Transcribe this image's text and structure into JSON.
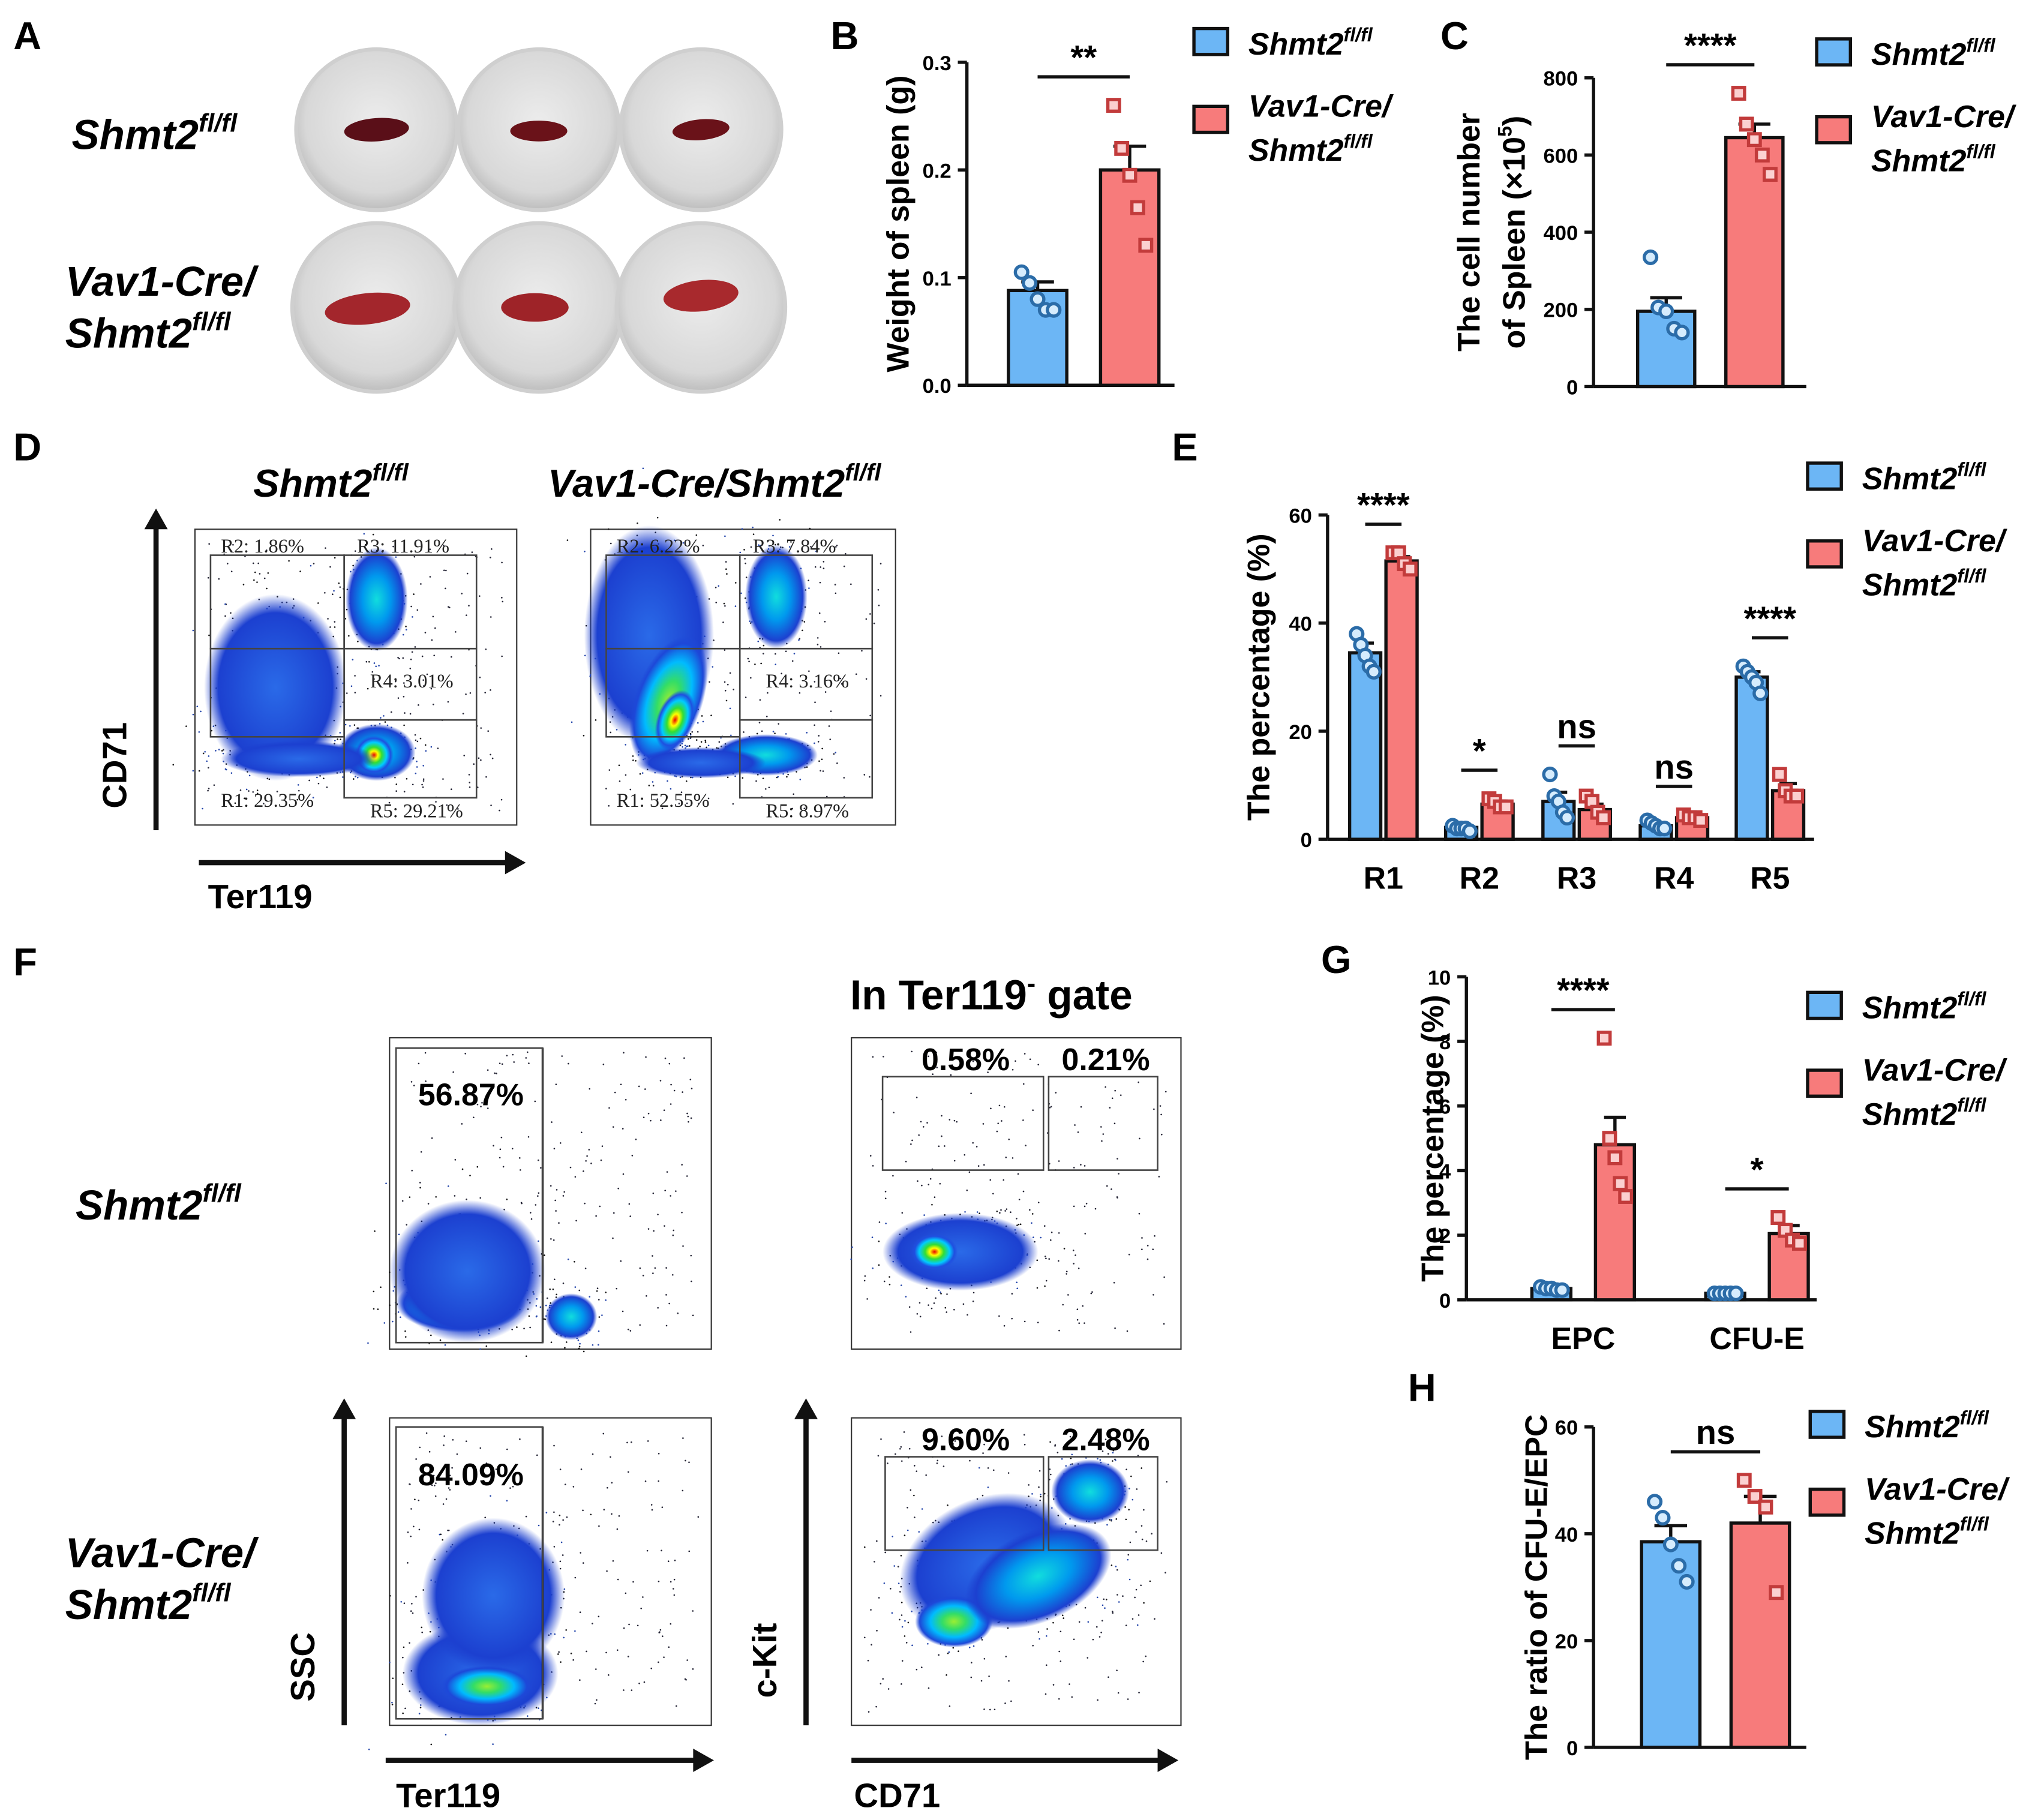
{
  "photo": {
    "label": "A",
    "rows": [
      {
        "text": "Shmt2",
        "sup": "fl/fl"
      },
      {
        "prefix": "Vav1-Cre/",
        "text": "Shmt2",
        "sup": "fl/fl"
      }
    ]
  },
  "flow_D": {
    "label": "D",
    "titles": [
      {
        "text": "Shmt2",
        "sup": "fl/fl"
      },
      {
        "text": "Vav1-Cre/Shmt2",
        "sup": "fl/fl"
      }
    ],
    "xlabel": "Ter119",
    "ylabel": "CD71",
    "gates": [
      [
        "R2: 1.86%",
        "R3: 11.91%",
        "R4: 3.01%",
        "R1: 29.35%",
        "R5: 29.21%"
      ],
      [
        "R2: 6.22%",
        "R3: 7.84%",
        "R4: 3.16%",
        "R1: 52.55%",
        "R5: 8.97%"
      ]
    ]
  },
  "flow_F": {
    "label": "F",
    "title": {
      "text": "In Ter119",
      "sup": "-",
      "after": " gate"
    },
    "rows": [
      {
        "text": "Shmt2",
        "sup": "fl/fl"
      },
      {
        "prefix": "Vav1-Cre/",
        "text": "Shmt2",
        "sup": "fl/fl"
      }
    ],
    "gates": [
      [
        "56.87%"
      ],
      [
        "0.58%",
        "0.21%"
      ],
      [
        "84.09%"
      ],
      [
        "9.60%",
        "2.48%"
      ]
    ],
    "xlabels": [
      "Ter119",
      "CD71"
    ],
    "ylabels": [
      "SSC",
      "c-Kit"
    ]
  },
  "chart_data": [
    {
      "type": "bar",
      "label": "B",
      "ylabel": "Weight of spleen (g)",
      "ylim": [
        0,
        0.3
      ],
      "yticks": [
        {
          "value": 0,
          "label": "0.0"
        },
        0.1,
        0.2,
        0.3
      ],
      "significance": [
        "**"
      ],
      "series": [
        {
          "name": {
            "text": "Shmt2",
            "sup": "fl/fl"
          },
          "color": "#6cb6f5",
          "marker": "circle",
          "values": [
            0.088
          ],
          "errors": [
            0.008
          ],
          "points": [
            [
              0.105,
              0.095,
              0.08,
              0.07,
              0.07
            ]
          ]
        },
        {
          "name": {
            "prefix": "Vav1-Cre/",
            "text": "Shmt2",
            "sup": "fl/fl"
          },
          "color": "#f77b7b",
          "marker": "square",
          "values": [
            0.2
          ],
          "errors": [
            0.022
          ],
          "points": [
            [
              0.26,
              0.22,
              0.195,
              0.165,
              0.13
            ]
          ]
        }
      ]
    },
    {
      "type": "bar",
      "label": "C",
      "ylabel": {
        "line1": "The cell number",
        "line2": "of Spleen (×10",
        "sup": "5",
        "line2_end": ")"
      },
      "ylim": [
        0,
        800
      ],
      "yticks": [
        0,
        200,
        400,
        600,
        800
      ],
      "significance": [
        "****"
      ],
      "series": [
        {
          "name": {
            "text": "Shmt2",
            "sup": "fl/fl"
          },
          "color": "#6cb6f5",
          "marker": "circle",
          "values": [
            195
          ],
          "errors": [
            35
          ],
          "points": [
            [
              335,
              205,
              195,
              150,
              140
            ]
          ]
        },
        {
          "name": {
            "prefix": "Vav1-Cre/",
            "text": "Shmt2",
            "sup": "fl/fl"
          },
          "color": "#f77b7b",
          "marker": "square",
          "values": [
            645
          ],
          "errors": [
            35
          ],
          "points": [
            [
              760,
              680,
              640,
              600,
              550
            ]
          ]
        }
      ]
    },
    {
      "type": "bar",
      "label": "E",
      "ylabel": "The percentage (%)",
      "ylim": [
        0,
        60
      ],
      "yticks": [
        0,
        20,
        40,
        60
      ],
      "categories": [
        "R1",
        "R2",
        "R3",
        "R4",
        "R5"
      ],
      "significance": [
        "****",
        "*",
        "ns",
        "ns",
        "****"
      ],
      "series": [
        {
          "name": {
            "text": "Shmt2",
            "sup": "fl/fl"
          },
          "color": "#6cb6f5",
          "marker": "circle",
          "values": [
            34.5,
            2.2,
            7,
            2.5,
            30
          ],
          "errors": [
            1.8,
            0.4,
            1.7,
            0.4,
            1
          ],
          "points": [
            [
              38,
              36,
              34,
              32,
              31
            ],
            [
              2.5,
              2,
              2,
              2,
              1.5
            ],
            [
              12,
              8,
              7,
              5,
              4
            ],
            [
              3.5,
              3,
              2.5,
              2,
              2
            ],
            [
              32,
              31,
              30,
              29,
              27
            ]
          ]
        },
        {
          "name": {
            "prefix": "Vav1-Cre/",
            "text": "Shmt2",
            "sup": "fl/fl"
          },
          "color": "#f77b7b",
          "marker": "square",
          "values": [
            51.5,
            6.5,
            5.5,
            4,
            9
          ],
          "errors": [
            0.8,
            0.6,
            1,
            0.3,
            1.3
          ],
          "points": [
            [
              53,
              53,
              51,
              50
            ],
            [
              7.5,
              7,
              6,
              6
            ],
            [
              8,
              7,
              5,
              4
            ],
            [
              4.5,
              4,
              4,
              3.5
            ],
            [
              12,
              9,
              8,
              8
            ]
          ]
        }
      ]
    },
    {
      "type": "bar",
      "label": "G",
      "ylabel": "The percentage (%)",
      "ylim": [
        0,
        10
      ],
      "yticks": [
        0,
        2,
        4,
        6,
        8,
        10
      ],
      "categories": [
        "EPC",
        "CFU-E"
      ],
      "significance": [
        "****",
        "*"
      ],
      "series": [
        {
          "name": {
            "text": "Shmt2",
            "sup": "fl/fl"
          },
          "color": "#6cb6f5",
          "marker": "circle",
          "values": [
            0.35,
            0.2
          ],
          "errors": [
            0.05,
            0.02
          ],
          "points": [
            [
              0.4,
              0.35,
              0.35,
              0.3,
              0.3
            ],
            [
              0.2,
              0.2,
              0.2,
              0.2,
              0.2
            ]
          ]
        },
        {
          "name": {
            "prefix": "Vav1-Cre/",
            "text": "Shmt2",
            "sup": "fl/fl"
          },
          "color": "#f77b7b",
          "marker": "square",
          "values": [
            4.8,
            2.05
          ],
          "errors": [
            0.85,
            0.25
          ],
          "points": [
            [
              8.1,
              5,
              4.4,
              3.6,
              3.2
            ],
            [
              2.55,
              2.15,
              1.85,
              1.75
            ]
          ]
        }
      ]
    },
    {
      "type": "bar",
      "label": "H",
      "ylabel": "The ratio of CFU-E/EPC",
      "ylim": [
        0,
        60
      ],
      "yticks": [
        0,
        20,
        40,
        60
      ],
      "significance": [
        "ns"
      ],
      "series": [
        {
          "name": {
            "text": "Shmt2",
            "sup": "fl/fl"
          },
          "color": "#6cb6f5",
          "marker": "circle",
          "values": [
            38.5
          ],
          "errors": [
            3
          ],
          "points": [
            [
              46,
              43,
              38,
              34,
              31
            ]
          ]
        },
        {
          "name": {
            "prefix": "Vav1-Cre/",
            "text": "Shmt2",
            "sup": "fl/fl"
          },
          "color": "#f77b7b",
          "marker": "square",
          "values": [
            42
          ],
          "errors": [
            5
          ],
          "points": [
            [
              50,
              47,
              45,
              29
            ]
          ]
        }
      ]
    }
  ]
}
